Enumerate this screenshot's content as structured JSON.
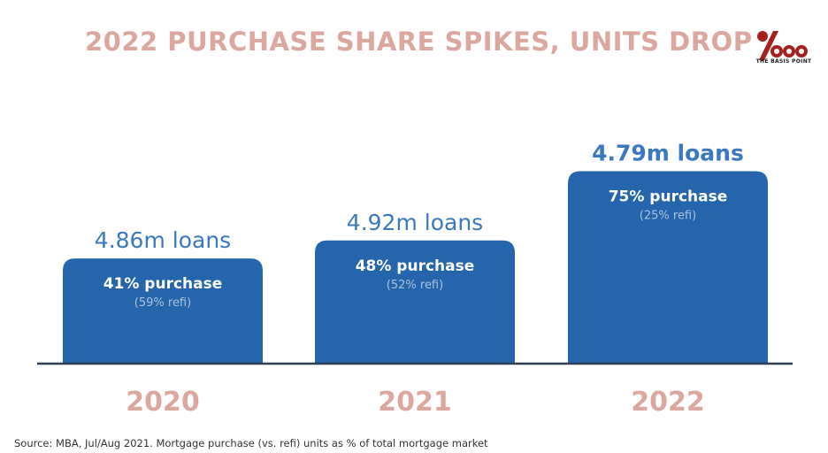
{
  "title": "2022 PURCHASE SHARE SPIKES, UNITS DROP",
  "logo": {
    "icon": "basis-point-logo",
    "text": "THE BASIS POINT",
    "color": "#a51f1f"
  },
  "source": "Source: MBA, Jul/Aug 2021. Mortgage purchase (vs. refi) units as % of total mortgage market",
  "colors": {
    "bar": "#2465ac",
    "title": "#dba79e",
    "year_label": "#dba79e",
    "loan_label": "#3a78c0",
    "refi_label": "#a9c2e0",
    "baseline": "#2d3e55"
  },
  "chart_data": {
    "type": "bar",
    "categories": [
      "2020",
      "2021",
      "2022"
    ],
    "values": [
      41,
      48,
      75
    ],
    "loan_labels": [
      "4.86m loans",
      "4.92m loans",
      "4.79m loans"
    ],
    "loans_millions": [
      4.86,
      4.92,
      4.79
    ],
    "purchase_labels": [
      "41% purchase",
      "48% purchase",
      "75% purchase"
    ],
    "refi_labels": [
      "(59% refi)",
      "(52% refi)",
      "(25% refi)"
    ],
    "refi_pct": [
      59,
      52,
      25
    ],
    "highlight": "2022",
    "ylim": [
      0,
      100
    ],
    "grid": false,
    "legend": "none"
  }
}
